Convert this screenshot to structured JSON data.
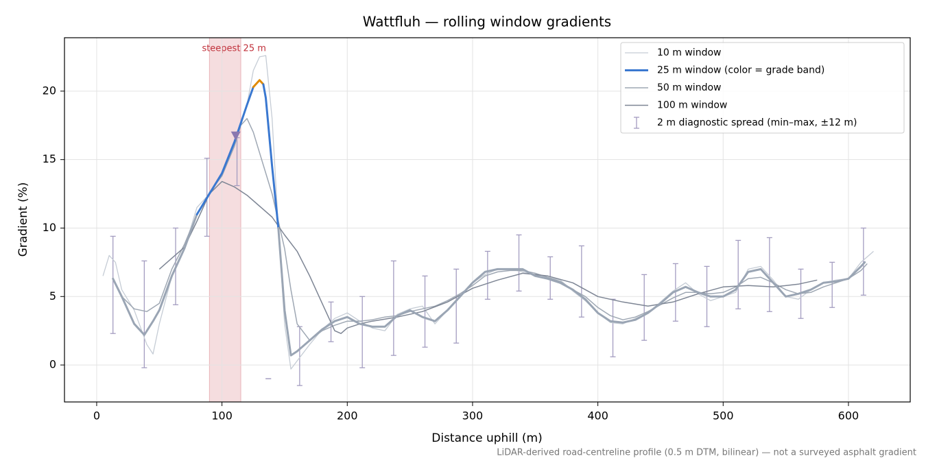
{
  "chart_data": {
    "type": "line",
    "title": "Wattfluh — rolling window gradients",
    "xlabel": "Distance uphill (m)",
    "ylabel": "Gradient (%)",
    "footnote": "LiDAR-derived road-centreline profile (0.5 m DTM, bilinear) — not a surveyed asphalt gradient",
    "xlim": [
      -25.7,
      649.3
    ],
    "ylim": [
      -2.7,
      23.9
    ],
    "xticks": [
      0,
      100,
      200,
      300,
      400,
      500,
      600
    ],
    "yticks": [
      0,
      5,
      10,
      15,
      20
    ],
    "grid": true,
    "legend": "upper right",
    "series": [
      {
        "name": "10 m window",
        "color": "#c5ccd5",
        "width": 1.3,
        "x": [
          5,
          10,
          15,
          20,
          30,
          40,
          45,
          50,
          60,
          70,
          80,
          90,
          100,
          110,
          120,
          125,
          130,
          135,
          140,
          145,
          150,
          155,
          160,
          170,
          180,
          190,
          200,
          210,
          220,
          230,
          240,
          250,
          260,
          270,
          280,
          290,
          300,
          310,
          320,
          330,
          340,
          350,
          360,
          370,
          380,
          390,
          400,
          410,
          420,
          430,
          440,
          450,
          460,
          470,
          480,
          490,
          500,
          510,
          520,
          530,
          540,
          550,
          560,
          570,
          580,
          590,
          600,
          610,
          620
        ],
        "values": [
          6.5,
          8.0,
          7.5,
          5.5,
          4.0,
          1.5,
          0.8,
          3.0,
          6.5,
          8.5,
          11.5,
          12.5,
          14,
          16,
          19,
          21.5,
          22.5,
          22.6,
          18,
          10,
          3,
          -0.3,
          0.3,
          1.5,
          2.6,
          3.4,
          3.8,
          3.2,
          2.7,
          2.5,
          3.7,
          4.1,
          4.3,
          3.0,
          4.0,
          5.0,
          6.0,
          6.6,
          7.0,
          7.0,
          6.8,
          6.6,
          6.4,
          6.2,
          5.4,
          4.7,
          3.8,
          3.1,
          3.0,
          3.4,
          3.8,
          4.6,
          5.4,
          6.0,
          5.2,
          4.7,
          5.0,
          5.3,
          7.0,
          7.2,
          6.2,
          5.0,
          4.8,
          5.5,
          6.0,
          6.2,
          6.3,
          7.5,
          8.3
        ]
      },
      {
        "name": "25 m window (color = grade band)",
        "color": "#3a78d0",
        "width": 3,
        "grade_bands": {
          "thresholds": [
            10,
            20
          ],
          "colors": [
            "#9aa5b4",
            "#3a78d0",
            "#e08a00"
          ]
        },
        "x": [
          13,
          20,
          30,
          38,
          45,
          50,
          60,
          70,
          80,
          90,
          100,
          110,
          120,
          125,
          130,
          133,
          135,
          140,
          145,
          150,
          155,
          160,
          170,
          180,
          190,
          200,
          210,
          220,
          230,
          240,
          250,
          260,
          270,
          280,
          290,
          300,
          310,
          320,
          330,
          340,
          350,
          360,
          370,
          380,
          390,
          400,
          410,
          420,
          430,
          440,
          450,
          460,
          470,
          480,
          490,
          500,
          510,
          520,
          530,
          540,
          550,
          560,
          570,
          580,
          590,
          600,
          610,
          613
        ],
        "values": [
          6.3,
          5.0,
          3.0,
          2.2,
          3.2,
          4.0,
          6.5,
          8.5,
          11,
          12.5,
          14,
          16.3,
          19,
          20.3,
          20.8,
          20.5,
          19.5,
          14.5,
          10,
          4,
          0.7,
          1.0,
          1.8,
          2.6,
          3.2,
          3.5,
          3.0,
          2.8,
          2.8,
          3.6,
          4.0,
          3.5,
          3.2,
          4.0,
          5.0,
          6.0,
          6.8,
          7.0,
          7.0,
          7.0,
          6.5,
          6.3,
          6.0,
          5.5,
          4.8,
          3.8,
          3.2,
          3.1,
          3.3,
          3.8,
          4.5,
          5.3,
          5.7,
          5.3,
          5.0,
          5.0,
          5.5,
          6.8,
          7.0,
          6.0,
          5.0,
          5.2,
          5.5,
          6.0,
          6.1,
          6.3,
          7.2,
          7.5
        ]
      },
      {
        "name": "50 m window",
        "color": "#9ea7b3",
        "width": 1.5,
        "x": [
          13,
          20,
          30,
          40,
          50,
          60,
          70,
          80,
          90,
          100,
          110,
          115,
          120,
          125,
          130,
          140,
          150,
          155,
          160,
          170,
          180,
          190,
          200,
          210,
          220,
          230,
          240,
          250,
          260,
          270,
          280,
          290,
          300,
          310,
          320,
          330,
          340,
          350,
          360,
          370,
          380,
          390,
          400,
          410,
          420,
          430,
          440,
          450,
          460,
          470,
          480,
          490,
          500,
          510,
          520,
          530,
          540,
          550,
          560,
          570,
          580,
          590,
          600,
          610,
          615
        ],
        "values": [
          6.3,
          5.0,
          4.1,
          3.9,
          4.5,
          7.0,
          8.8,
          11,
          12.6,
          13.8,
          16,
          17.5,
          18.0,
          17.0,
          15.5,
          12.5,
          8.5,
          5.5,
          3.0,
          1.8,
          2.5,
          2.9,
          3.2,
          3.2,
          3.3,
          3.5,
          3.6,
          3.9,
          4.1,
          4.3,
          4.7,
          5.2,
          5.8,
          6.5,
          6.8,
          6.9,
          6.9,
          6.7,
          6.4,
          6.1,
          5.5,
          5.0,
          4.2,
          3.6,
          3.3,
          3.5,
          3.9,
          4.4,
          4.9,
          5.3,
          5.3,
          5.2,
          5.3,
          5.7,
          6.3,
          6.4,
          6.0,
          5.5,
          5.2,
          5.3,
          5.7,
          6.0,
          6.3,
          6.9,
          7.4
        ]
      },
      {
        "name": "100 m window",
        "color": "#7d8594",
        "width": 1.5,
        "x": [
          50,
          60,
          70,
          80,
          90,
          100,
          110,
          120,
          130,
          140,
          150,
          160,
          170,
          180,
          190,
          195,
          200,
          210,
          220,
          240,
          260,
          280,
          300,
          320,
          340,
          360,
          380,
          400,
          420,
          440,
          460,
          480,
          500,
          520,
          540,
          560,
          575
        ],
        "values": [
          7.0,
          7.8,
          8.6,
          10.5,
          12.5,
          13.4,
          13.0,
          12.4,
          11.6,
          10.8,
          9.5,
          8.3,
          6.5,
          4.5,
          2.5,
          2.3,
          2.7,
          3.0,
          3.2,
          3.5,
          3.9,
          4.6,
          5.6,
          6.2,
          6.7,
          6.5,
          6.0,
          5.0,
          4.6,
          4.3,
          4.6,
          5.2,
          5.7,
          5.8,
          5.7,
          5.9,
          6.2
        ]
      }
    ],
    "spread": {
      "name": "2 m diagnostic spread (min–max, ±12 m)",
      "color": "#a39cc0",
      "x": [
        13,
        38,
        63,
        88,
        112,
        137,
        162,
        187,
        212,
        237,
        262,
        287,
        312,
        337,
        362,
        387,
        412,
        437,
        462,
        487,
        512,
        537,
        562,
        587,
        612
      ],
      "min": [
        2.3,
        -0.2,
        4.4,
        9.4,
        13.1,
        -1.0,
        -1.5,
        1.7,
        -0.2,
        0.7,
        1.3,
        1.6,
        4.8,
        5.4,
        4.8,
        3.5,
        0.6,
        1.8,
        3.2,
        2.8,
        4.1,
        3.9,
        3.4,
        4.2,
        5.1
      ],
      "max": [
        9.4,
        7.6,
        10.0,
        15.1,
        16.6,
        -1.0,
        2.8,
        4.6,
        5.0,
        7.6,
        6.5,
        7.0,
        8.3,
        9.5,
        7.9,
        8.7,
        4.8,
        6.6,
        7.4,
        7.2,
        9.1,
        9.3,
        7.0,
        7.5,
        10.0
      ]
    },
    "highlight": {
      "label": "steepest 25 m",
      "x": [
        90,
        115
      ],
      "color": "#e8b4b8"
    },
    "marker": {
      "x": 111,
      "value": 16.7,
      "color": "#8a78b0"
    }
  }
}
